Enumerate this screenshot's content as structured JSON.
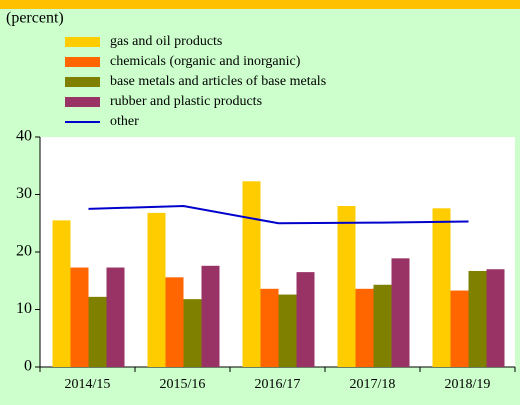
{
  "chart_data": {
    "type": "bar",
    "subtitle": "(percent)",
    "categories": [
      "2014/15",
      "2015/16",
      "2016/17",
      "2017/18",
      "2018/19"
    ],
    "series": [
      {
        "name": "gas and oil products",
        "color": "#ffcc00",
        "values": [
          25.5,
          26.8,
          32.3,
          28.0,
          27.6
        ]
      },
      {
        "name": "chemicals (organic and inorganic)",
        "color": "#ff6600",
        "values": [
          17.3,
          15.6,
          13.6,
          13.6,
          13.3
        ]
      },
      {
        "name": "base metals and articles of base metals",
        "color": "#808000",
        "values": [
          12.2,
          11.8,
          12.6,
          14.3,
          16.7
        ]
      },
      {
        "name": "rubber and plastic products",
        "color": "#993366",
        "values": [
          17.3,
          17.6,
          16.5,
          18.9,
          17.0
        ]
      },
      {
        "name": "other",
        "type": "line",
        "color": "#0000cc",
        "values": [
          27.5,
          28.0,
          25.0,
          25.1,
          25.3
        ]
      }
    ],
    "ylim": [
      0,
      40
    ],
    "yticks": [
      0,
      10,
      20,
      30,
      40
    ],
    "grid": false
  }
}
